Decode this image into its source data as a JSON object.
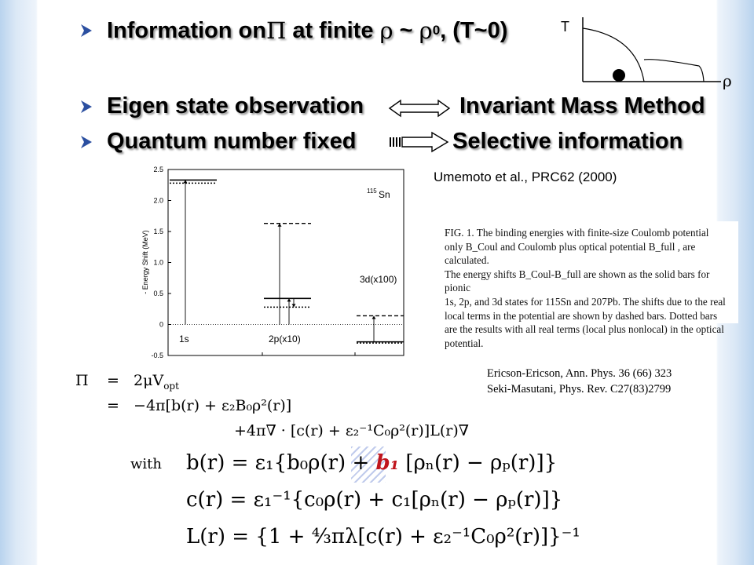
{
  "bullets": [
    {
      "pre": "Information on ",
      "pi": "Π",
      "mid": " at finite ",
      "rho": "ρ",
      "approx": " ~ ",
      "rho0": "ρ",
      "sub0": "0",
      "post": ", (T~0)"
    },
    {
      "left": "Eigen state observation",
      "right": "Invariant Mass Method"
    },
    {
      "left": "Quantum number fixed",
      "right": "Selective information"
    }
  ],
  "phase_diagram": {
    "t_label": "T",
    "rho_label": "ρ"
  },
  "umemoto_ref": {
    "authors": "Umemoto et al.,",
    "journal": " PRC62 (2000)"
  },
  "chart_data": {
    "type": "bar",
    "ylabel": "- Energy Shift (MeV)",
    "ylim": [
      -0.5,
      2.5
    ],
    "yticks": [
      "2.5",
      "2.0",
      "1.5",
      "1.0",
      "0.5",
      "0",
      "-0.5"
    ],
    "nucleus_label": "Sn",
    "nucleus_mass": "115",
    "state_labels": [
      "1s",
      "2p(x10)",
      "3d(x100)"
    ],
    "series": [
      {
        "name": "Coulomb shift (solid)",
        "values": [
          2.33,
          0.42,
          -0.28
        ]
      },
      {
        "name": "real local terms (dashed)",
        "values": [
          null,
          1.63,
          0.14
        ]
      },
      {
        "name": "all real terms (dotted)",
        "values": [
          2.28,
          0.28,
          -0.3
        ]
      }
    ]
  },
  "fig_caption": {
    "lines": [
      "FIG. 1.  The binding energies with finite-size Coulomb potential",
      "only B_Coul and Coulomb plus optical potential B_full , are calculated.",
      "The energy shifts B_Coul-B_full are shown as the solid bars for pionic",
      "1s, 2p, and 3d states for 115Sn and 207Pb. The shifts due to the real",
      "local terms in the potential are shown by dashed bars. Dotted bars",
      "are the results with all real terms (local plus nonlocal) in the optical",
      "potential."
    ]
  },
  "refs": {
    "ericson": "Ericson-Ericson, Ann. Phys. 36 (66) 323",
    "seki": "Seki-Masutani, Phys. Rev. C27(83)2799"
  },
  "equations": {
    "pi": "Π",
    "eq1": "=   2μV",
    "eq1_sub": "opt",
    "eq2": "=   −4π[b(r) + ε₂B₀ρ²(r)]",
    "eq3": "+4π∇ · [c(r) + ε₂⁻¹C₀ρ²(r)]L(r)∇",
    "with": "with",
    "b_pre": "b(r) = ε₁{b₀ρ(r) + ",
    "b1": "b₁",
    "b_post": " [ρₙ(r) − ρₚ(r)]}",
    "c_line": "c(r) = ε₁⁻¹{c₀ρ(r) + c₁[ρₙ(r) − ρₚ(r)]}",
    "l_line": "L(r) = {1 + ⁴⁄₃πλ[c(r) + ε₂⁻¹C₀ρ²(r)]}⁻¹"
  }
}
